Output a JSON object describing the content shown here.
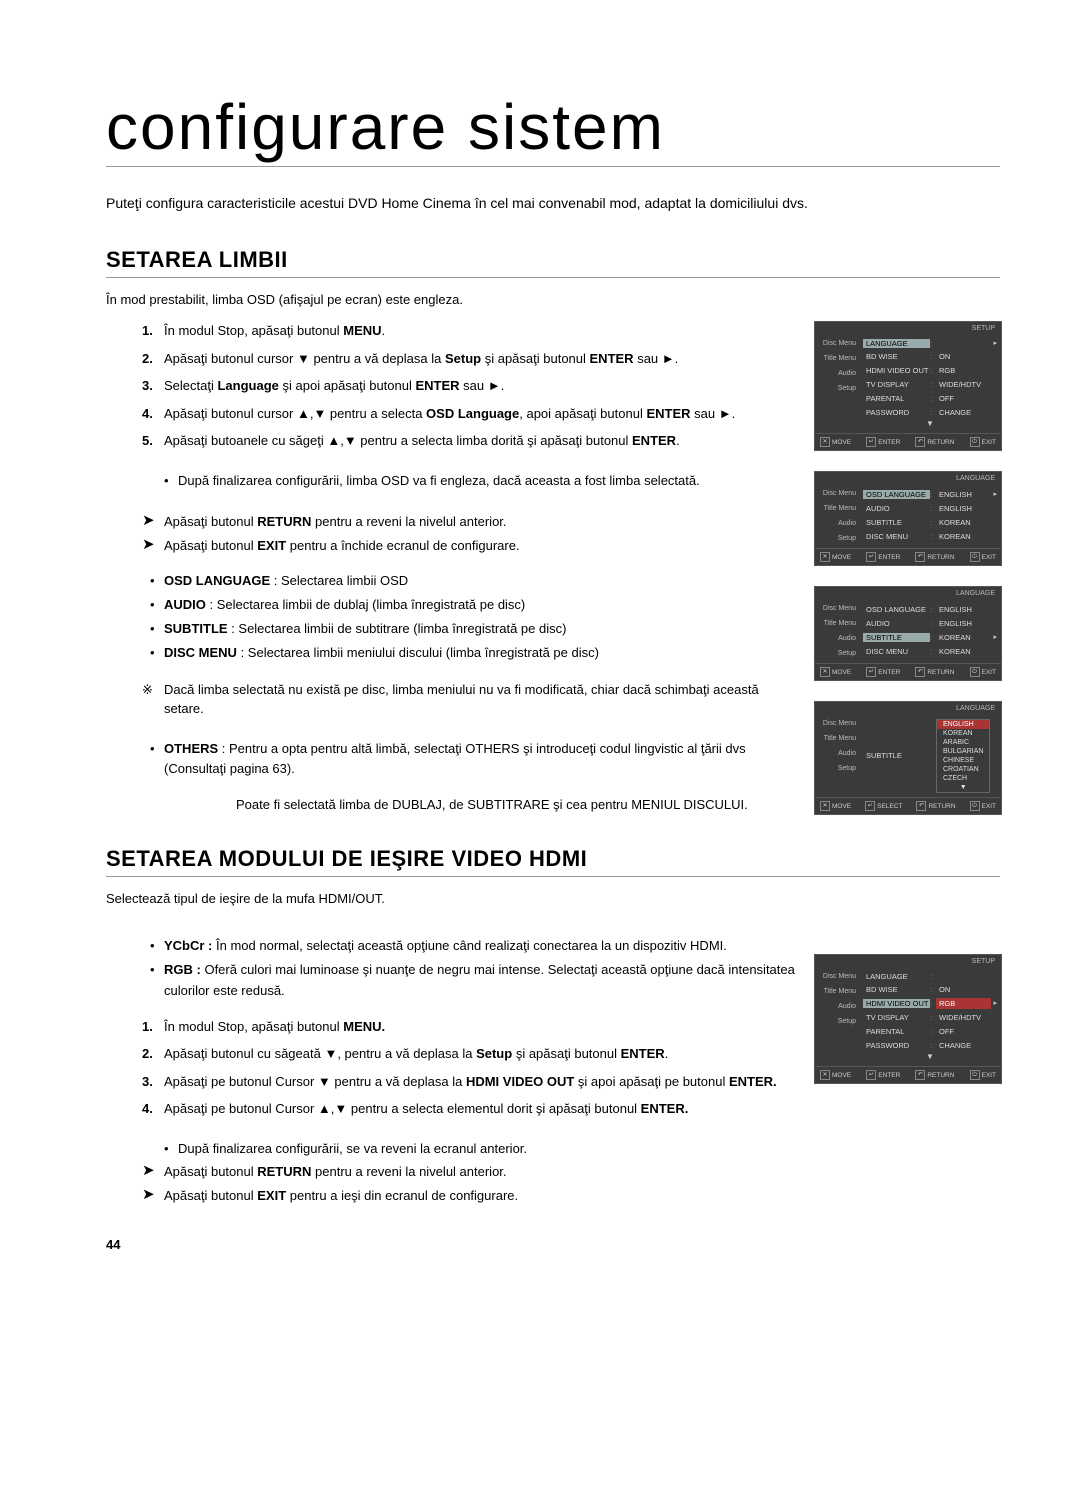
{
  "title": "configurare sistem",
  "intro": "Puteţi configura caracteristicile acestui DVD Home Cinema în cel mai convenabil mod, adaptat la domiciliului dvs.",
  "page_number": "44",
  "section1": {
    "heading": "SETAREA LIMBII",
    "sub": "În mod prestabilit, limba OSD (afişajul pe ecran) este engleza.",
    "steps": [
      "În modul Stop, apăsaţi butonul <b>MENU</b>.",
      "Apăsaţi butonul cursor ▼ pentru a vă deplasa la <b>Setup</b> şi apăsaţi butonul <b>ENTER</b> sau ►.",
      "Selectaţi <b>Language</b> şi apoi apăsaţi butonul <b>ENTER</b> sau ►.",
      "Apăsaţi butonul cursor ▲,▼ pentru a selecta <b>OSD Language</b>, apoi apăsaţi butonul <b>ENTER</b> sau ►.",
      "Apăsaţi butoanele cu săgeţi ▲,▼ pentru a selecta limba dorită şi apăsaţi butonul <b>ENTER</b>."
    ],
    "step5_sub": "După finalizarea configurării, limba OSD va fi engleza, dacă aceasta a fost limba selectată.",
    "return_note": "Apăsaţi butonul <b>RETURN</b> pentru a reveni la nivelul anterior.",
    "exit_note": "Apăsaţi butonul <b>EXIT</b> pentru a închide ecranul de configurare.",
    "bullets": [
      "<b>OSD LANGUAGE</b> : Selectarea limbii OSD",
      "<b>AUDIO</b> : Selectarea limbii de dublaj (limba înregistrată pe disc)",
      "<b>SUBTITLE</b> : Selectarea limbii de subtitrare (limba înregistrată pe disc)",
      "<b>DISC MENU</b> : Selectarea limbii meniului discului (limba înregistrată pe disc)"
    ],
    "asterisk": "Dacă limba selectată nu există pe disc, limba meniului nu va fi modificată, chiar dacă schimbaţi această setare.",
    "others_bullet": "<b>OTHERS</b> : Pentru a opta pentru altă limbă, selectaţi OTHERS şi introduceţi codul lingvistic al ţării dvs (Consultaţi pagina 63).",
    "others_cont": "Poate fi selectată limba de DUBLAJ, de SUBTITRARE şi cea pentru MENIUL DISCULUI."
  },
  "section2": {
    "heading": "SETAREA MODULUI DE IEŞIRE VIDEO HDMI",
    "sub": "Selectează tipul de ieşire de la mufa HDMI/OUT.",
    "pre_bullets": [
      "<b>YCbCr :</b> În mod normal, selectaţi această opţiune când realizaţi conectarea la un dispozitiv HDMI.",
      "<b>RGB :</b> Oferă culori mai luminoase şi nuanţe de negru mai intense. Selectaţi această opţiune dacă intensitatea culorilor este redusă."
    ],
    "steps": [
      "În modul Stop, apăsaţi butonul <b>MENU.</b>",
      "Apăsaţi butonul cu săgeată ▼, pentru a vă deplasa la <b>Setup</b> şi apăsaţi butonul <b>ENTER</b>.",
      "Apăsaţi pe butonul Cursor ▼ pentru a vă deplasa la <b>HDMI VIDEO OUT</b> şi apoi apăsaţi pe butonul <b>ENTER.</b>",
      "Apăsaţi pe butonul Cursor ▲,▼ pentru a selecta elementul dorit şi apăsaţi butonul <b>ENTER.</b>"
    ],
    "step4_sub": "După finalizarea configurării, se va reveni la ecranul anterior.",
    "return_note": "Apăsaţi butonul <b>RETURN</b> pentru a reveni la nivelul anterior.",
    "exit_note": "Apăsaţi butonul <b>EXIT</b> pentru a ieşi din ecranul de configurare."
  },
  "osd_labels": {
    "move": "MOVE",
    "enter": "ENTER",
    "return": "RETURN",
    "exit": "EXIT",
    "select": "SELECT",
    "setup": "SETUP",
    "language_caps": "LANGUAGE",
    "side": [
      "Disc Menu",
      "Title Menu",
      "Audio",
      "Setup"
    ]
  },
  "osd1": {
    "right_title": "SETUP",
    "rows": [
      {
        "label": "LANGUAGE",
        "val": "",
        "hl": true,
        "tri": true
      },
      {
        "label": "BD WISE",
        "val": "ON"
      },
      {
        "label": "HDMI VIDEO OUT",
        "val": "RGB"
      },
      {
        "label": "TV DISPLAY",
        "val": "WIDE/HDTV"
      },
      {
        "label": "PARENTAL",
        "val": "OFF"
      },
      {
        "label": "PASSWORD",
        "val": "CHANGE"
      }
    ]
  },
  "osd2": {
    "right_title": "LANGUAGE",
    "rows": [
      {
        "label": "OSD LANGUAGE",
        "val": "ENGLISH",
        "hl": true,
        "tri": true
      },
      {
        "label": "AUDIO",
        "val": "ENGLISH"
      },
      {
        "label": "SUBTITLE",
        "val": "KOREAN"
      },
      {
        "label": "DISC MENU",
        "val": "KOREAN"
      }
    ]
  },
  "osd3": {
    "right_title": "LANGUAGE",
    "rows": [
      {
        "label": "OSD LANGUAGE",
        "val": "ENGLISH"
      },
      {
        "label": "AUDIO",
        "val": "ENGLISH"
      },
      {
        "label": "SUBTITLE",
        "val": "KOREAN",
        "hl": true,
        "tri": true
      },
      {
        "label": "DISC MENU",
        "val": "KOREAN"
      }
    ]
  },
  "osd4": {
    "right_title": "LANGUAGE",
    "label": "SUBTITLE",
    "options": [
      "ENGLISH",
      "KOREAN",
      "ARABIC",
      "BULGARIAN",
      "CHINESE",
      "CROATIAN",
      "CZECH"
    ],
    "selected": 0
  },
  "osd5": {
    "right_title": "SETUP",
    "rows": [
      {
        "label": "LANGUAGE",
        "val": ""
      },
      {
        "label": "BD WISE",
        "val": "ON"
      },
      {
        "label": "HDMI VIDEO OUT",
        "val": "RGB",
        "hl": true,
        "hlval": true,
        "tri": true
      },
      {
        "label": "TV DISPLAY",
        "val": "WIDE/HDTV"
      },
      {
        "label": "PARENTAL",
        "val": "OFF"
      },
      {
        "label": "PASSWORD",
        "val": "CHANGE"
      }
    ]
  }
}
